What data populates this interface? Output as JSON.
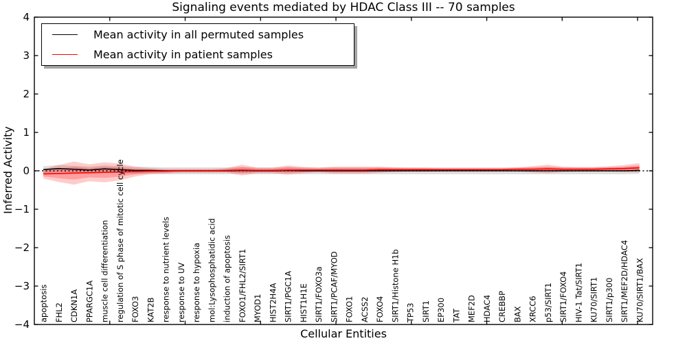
{
  "figure": {
    "title": "Signaling events mediated by HDAC Class III -- 70 samples",
    "xlabel": "Cellular Entities",
    "ylabel": "Inferred Activity"
  },
  "legend": {
    "entries": [
      {
        "label": "Mean activity in all permuted samples",
        "color": "#000000"
      },
      {
        "label": "Mean activity in patient samples",
        "color": "#ff0000"
      }
    ],
    "position": "upper left",
    "shadow": true
  },
  "chart_data": {
    "type": "line",
    "title": "Signaling events mediated by HDAC Class III -- 70 samples",
    "xlabel": "Cellular Entities",
    "ylabel": "Inferred Activity",
    "ylim": [
      -4,
      4
    ],
    "xlim": [
      0,
      41
    ],
    "yticks": [
      4,
      3,
      2,
      1,
      0,
      -1,
      -2,
      -3,
      -4
    ],
    "xticks": [
      5,
      10,
      15,
      20,
      25,
      30,
      35,
      40
    ],
    "grid": false,
    "tick_direction": "in",
    "x_tick_label_rotation": 90,
    "categories": [
      "apoptosis",
      "FHL2",
      "CDKN1A",
      "PPARGC1A",
      "muscle cell differentiation",
      "regulation of S phase of mitotic cell cycle",
      "FOXO3",
      "KAT2B",
      "response to nutrient levels",
      "response to UV",
      "response to hypoxia",
      "mol:Lysophosphatidic acid",
      "induction of apoptosis",
      "FOXO1/FHL2/SIRT1",
      "MYOD1",
      "HIST2H4A",
      "SIRT1/PGC1A",
      "HIST1H1E",
      "SIRT1/FOXO3a",
      "SIRT1/PCAF/MYOD",
      "FOXO1",
      "ACSS2",
      "FOXO4",
      "SIRT1/Histone H1b",
      "TP53",
      "SIRT1",
      "EP300",
      "TAT",
      "MEF2D",
      "HDAC4",
      "CREBBP",
      "BAX",
      "XRCC6",
      "p53/SIRT1",
      "SIRT1/FOXO4",
      "HIV-1 Tat/SIRT1",
      "KU70/SIRT1",
      "SIRT1/p300",
      "SIRT1/MEF2D/HDAC4",
      "KU70/SIRT1/BAX"
    ],
    "series": [
      {
        "name": "Mean activity in all permuted samples",
        "color": "#000000",
        "linestyle": "solid",
        "values": [
          0.03,
          0.06,
          0.04,
          0.02,
          0.05,
          0.03,
          0.01,
          0.01,
          0.0,
          0.0,
          0.0,
          0.0,
          0.0,
          0.01,
          0.0,
          0.0,
          0.01,
          0.0,
          0.0,
          0.0,
          0.0,
          0.0,
          0.0,
          0.0,
          0.0,
          0.0,
          0.0,
          0.0,
          0.0,
          0.0,
          0.0,
          0.0,
          0.0,
          0.0,
          0.0,
          0.0,
          0.0,
          0.0,
          0.0,
          0.01
        ]
      },
      {
        "name": "Mean activity in patient samples",
        "color": "#ff0000",
        "linestyle": "solid",
        "values": [
          -0.08,
          -0.07,
          -0.06,
          -0.05,
          -0.04,
          -0.03,
          -0.02,
          -0.01,
          -0.01,
          0.0,
          0.0,
          0.0,
          0.01,
          0.02,
          0.01,
          0.01,
          0.02,
          0.02,
          0.02,
          0.02,
          0.02,
          0.02,
          0.03,
          0.03,
          0.03,
          0.03,
          0.03,
          0.03,
          0.03,
          0.03,
          0.03,
          0.04,
          0.04,
          0.05,
          0.04,
          0.04,
          0.04,
          0.05,
          0.06,
          0.08
        ]
      }
    ],
    "bands": {
      "permuted": {
        "name": "permuted samples spread",
        "color": "#000000",
        "alpha": 0.13,
        "halfwidth_constant": 0.09,
        "center_series": 0
      },
      "patient": {
        "name": "patient samples spread",
        "color": "#ff0000",
        "alpha": 0.2,
        "inner_scale": 0.55,
        "center_series": 1,
        "halfwidths": [
          0.12,
          0.22,
          0.3,
          0.22,
          0.26,
          0.22,
          0.13,
          0.08,
          0.06,
          0.05,
          0.05,
          0.05,
          0.06,
          0.14,
          0.07,
          0.07,
          0.12,
          0.08,
          0.06,
          0.09,
          0.09,
          0.09,
          0.08,
          0.06,
          0.05,
          0.05,
          0.04,
          0.04,
          0.04,
          0.04,
          0.04,
          0.05,
          0.08,
          0.11,
          0.07,
          0.06,
          0.06,
          0.07,
          0.09,
          0.12
        ]
      }
    },
    "zero_line": {
      "value": 0,
      "linestyle": "dotted",
      "color": "#000000"
    }
  }
}
